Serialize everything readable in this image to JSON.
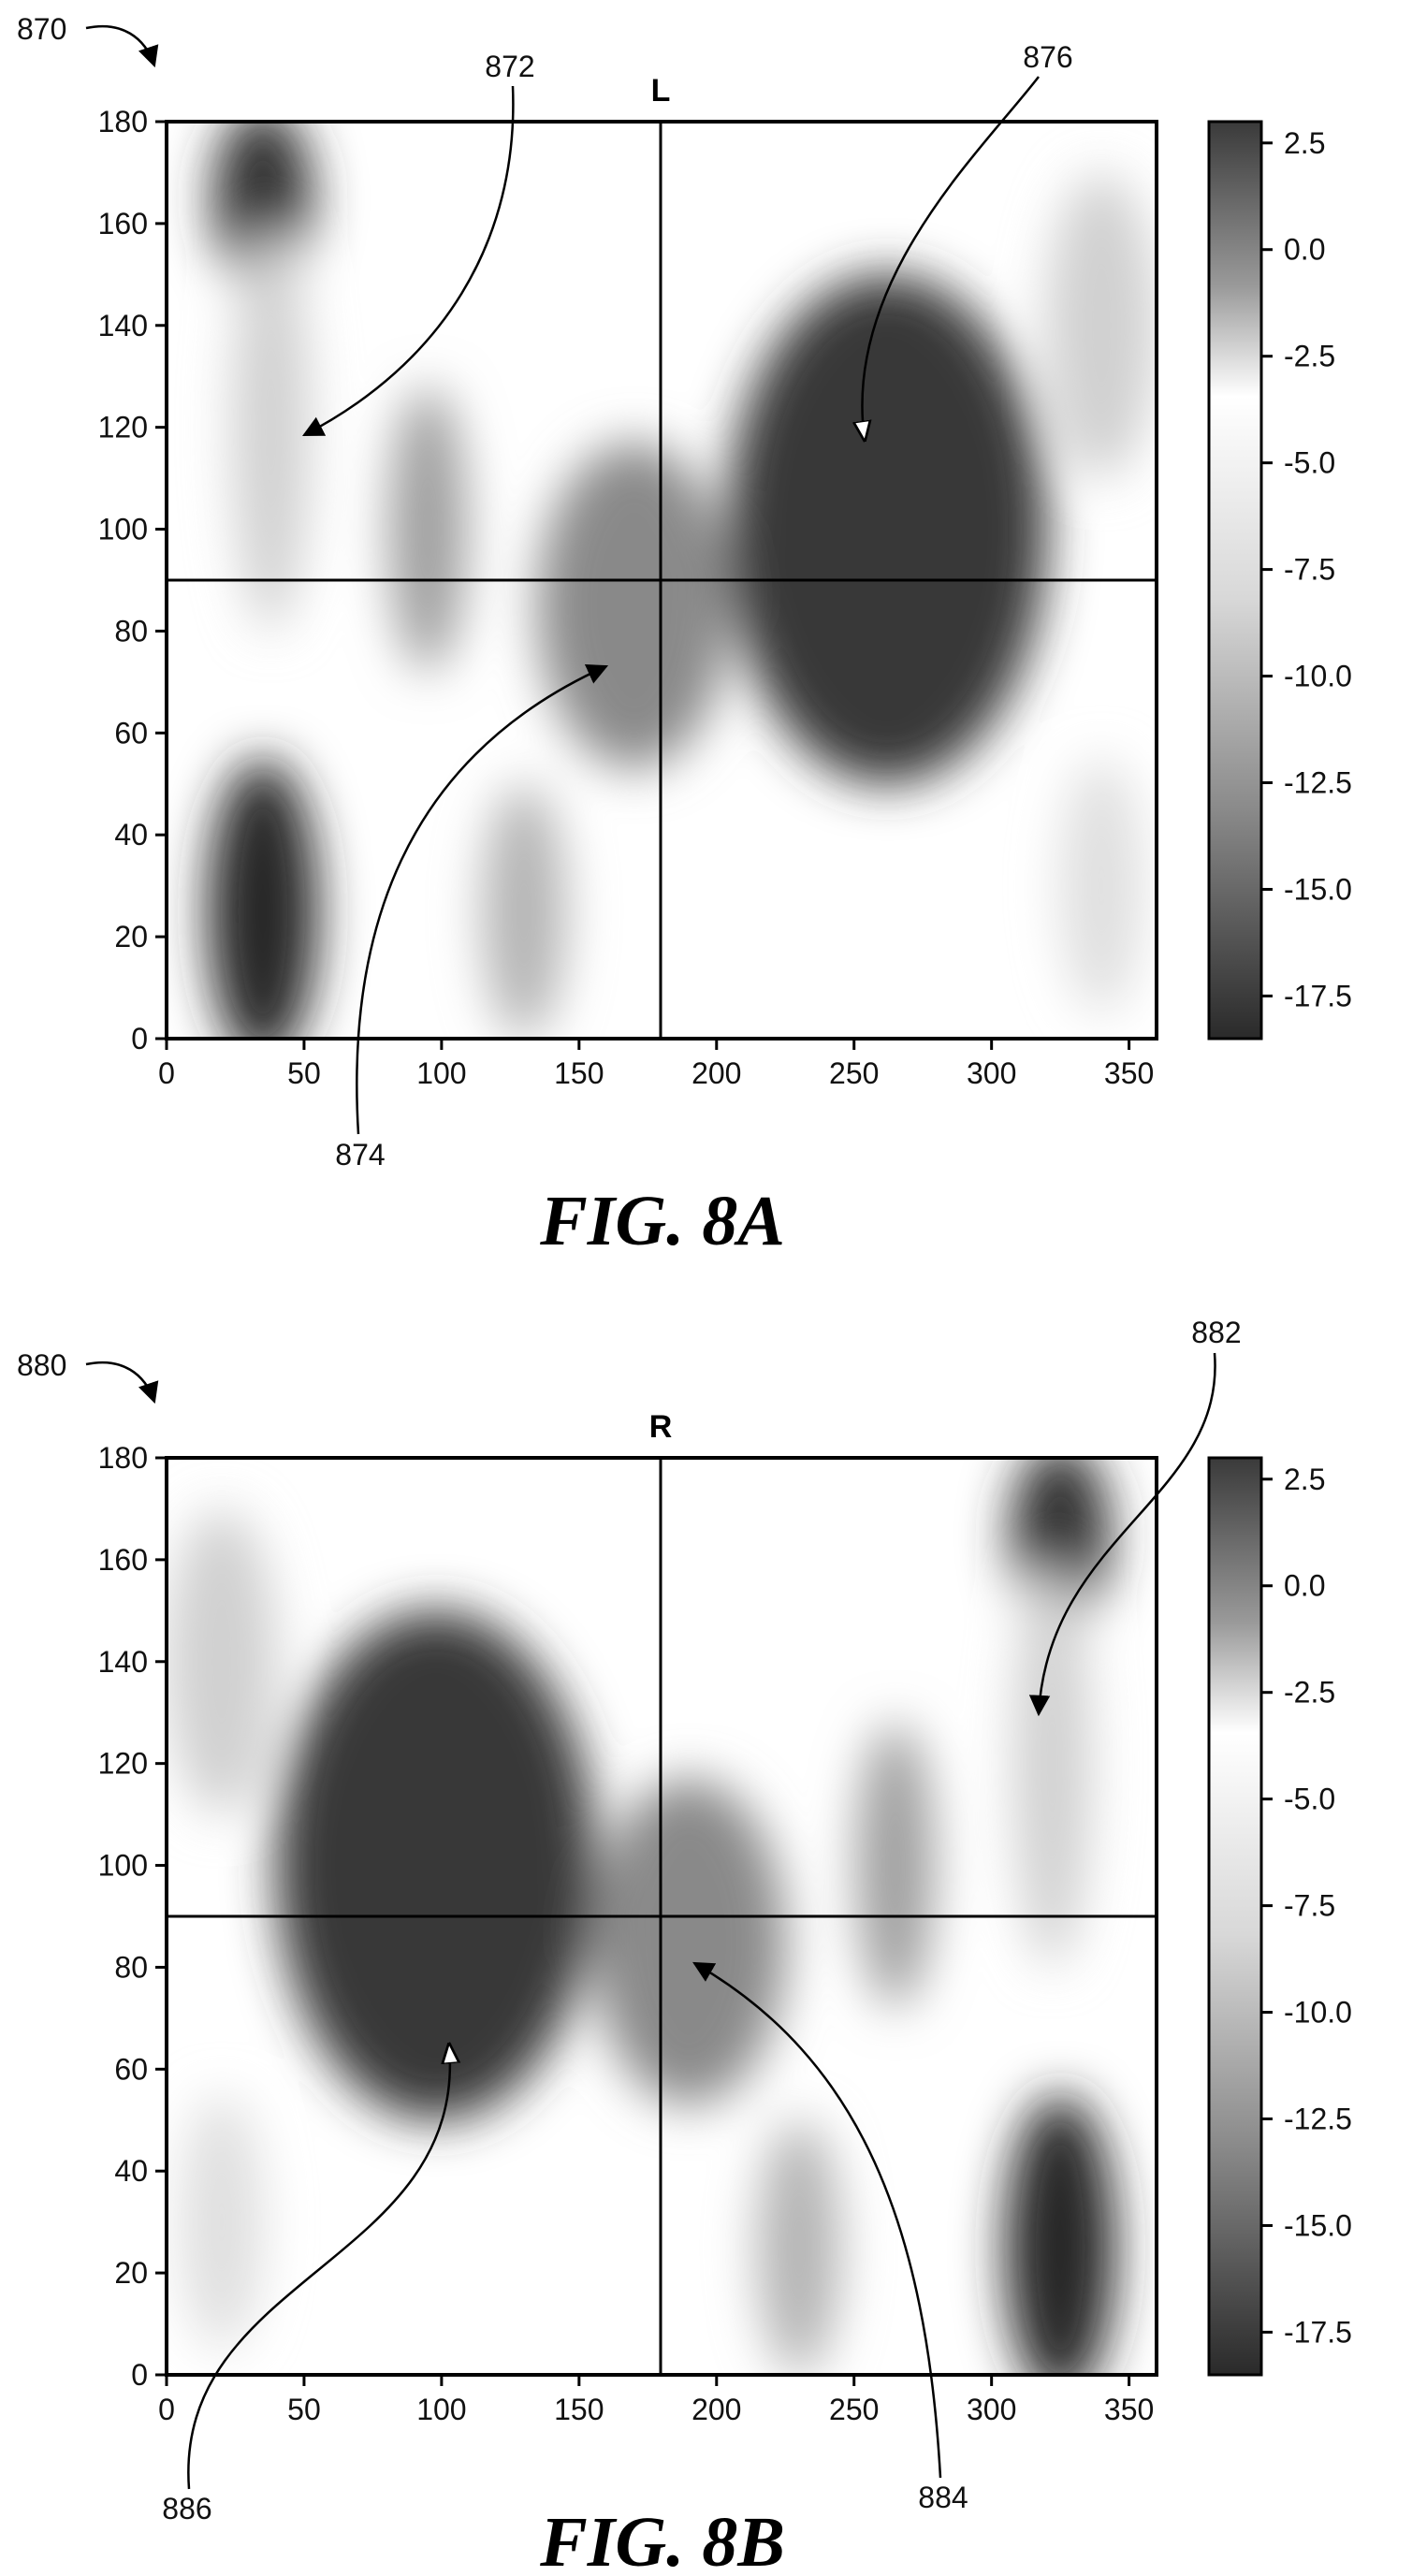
{
  "figures": [
    {
      "ref": "870",
      "caption": "FIG. 8A",
      "panel_title": "L",
      "callouts": [
        "872",
        "874",
        "876"
      ]
    },
    {
      "ref": "880",
      "caption": "FIG. 8B",
      "panel_title": "R",
      "callouts": [
        "882",
        "884",
        "886"
      ]
    }
  ],
  "chart_data": [
    {
      "type": "heatmap",
      "title": "L",
      "xlabel": "",
      "ylabel": "",
      "xlim": [
        0,
        360
      ],
      "ylim": [
        0,
        180
      ],
      "x_ticks": [
        "0",
        "50",
        "100",
        "150",
        "200",
        "250",
        "300",
        "350"
      ],
      "y_ticks": [
        "0",
        "20",
        "40",
        "60",
        "80",
        "100",
        "120",
        "140",
        "160",
        "180"
      ],
      "colorbar": {
        "range": [
          -18.5,
          3.0
        ],
        "ticks": [
          "2.5",
          "0.0",
          "-2.5",
          "-5.0",
          "-7.5",
          "-10.0",
          "-12.5",
          "-15.0",
          "-17.5"
        ],
        "colormap": "grayscale: dark at 2.5 and -17.5, white near -5.0"
      },
      "reference_lines": {
        "x": 180,
        "y": 90
      },
      "regions": [
        {
          "label": "872",
          "x": 35,
          "y": 165,
          "x_spread": 18,
          "y_spread": 18,
          "intensity": 0.95
        },
        {
          "label": "872",
          "x": 38,
          "y": 120,
          "x_spread": 14,
          "y_spread": 40,
          "intensity": 0.22
        },
        {
          "label": "",
          "x": 35,
          "y": 25,
          "x_spread": 20,
          "y_spread": 30,
          "intensity": 1.0
        },
        {
          "label": "",
          "x": 95,
          "y": 100,
          "x_spread": 14,
          "y_spread": 28,
          "intensity": 0.45
        },
        {
          "label": "",
          "x": 130,
          "y": 25,
          "x_spread": 15,
          "y_spread": 25,
          "intensity": 0.35
        },
        {
          "label": "874",
          "x": 170,
          "y": 85,
          "x_spread": 35,
          "y_spread": 32,
          "intensity": 0.55
        },
        {
          "label": "876",
          "x": 262,
          "y": 100,
          "x_spread": 58,
          "y_spread": 50,
          "intensity": 0.92
        },
        {
          "label": "",
          "x": 340,
          "y": 140,
          "x_spread": 20,
          "y_spread": 30,
          "intensity": 0.22
        },
        {
          "label": "",
          "x": 340,
          "y": 30,
          "x_spread": 15,
          "y_spread": 25,
          "intensity": 0.15
        }
      ]
    },
    {
      "type": "heatmap",
      "title": "R",
      "xlabel": "",
      "ylabel": "",
      "xlim": [
        0,
        360
      ],
      "ylim": [
        0,
        180
      ],
      "x_ticks": [
        "0",
        "50",
        "100",
        "150",
        "200",
        "250",
        "300",
        "350"
      ],
      "y_ticks": [
        "0",
        "20",
        "40",
        "60",
        "80",
        "100",
        "120",
        "140",
        "160",
        "180"
      ],
      "colorbar": {
        "range": [
          -18.5,
          3.0
        ],
        "ticks": [
          "2.5",
          "0.0",
          "-2.5",
          "-5.0",
          "-7.5",
          "-10.0",
          "-12.5",
          "-15.0",
          "-17.5"
        ],
        "colormap": "grayscale: dark at 2.5 and -17.5, white near -5.0"
      },
      "reference_lines": {
        "x": 180,
        "y": 90
      },
      "regions": [
        {
          "label": "882",
          "x": 325,
          "y": 165,
          "x_spread": 18,
          "y_spread": 18,
          "intensity": 0.95
        },
        {
          "label": "882",
          "x": 322,
          "y": 120,
          "x_spread": 14,
          "y_spread": 40,
          "intensity": 0.22
        },
        {
          "label": "",
          "x": 325,
          "y": 25,
          "x_spread": 20,
          "y_spread": 30,
          "intensity": 1.0
        },
        {
          "label": "",
          "x": 265,
          "y": 100,
          "x_spread": 14,
          "y_spread": 28,
          "intensity": 0.45
        },
        {
          "label": "",
          "x": 230,
          "y": 25,
          "x_spread": 15,
          "y_spread": 25,
          "intensity": 0.35
        },
        {
          "label": "884",
          "x": 190,
          "y": 85,
          "x_spread": 35,
          "y_spread": 32,
          "intensity": 0.55
        },
        {
          "label": "886",
          "x": 98,
          "y": 100,
          "x_spread": 58,
          "y_spread": 50,
          "intensity": 0.92
        },
        {
          "label": "",
          "x": 20,
          "y": 140,
          "x_spread": 20,
          "y_spread": 30,
          "intensity": 0.22
        },
        {
          "label": "",
          "x": 20,
          "y": 30,
          "x_spread": 15,
          "y_spread": 25,
          "intensity": 0.15
        }
      ]
    }
  ]
}
